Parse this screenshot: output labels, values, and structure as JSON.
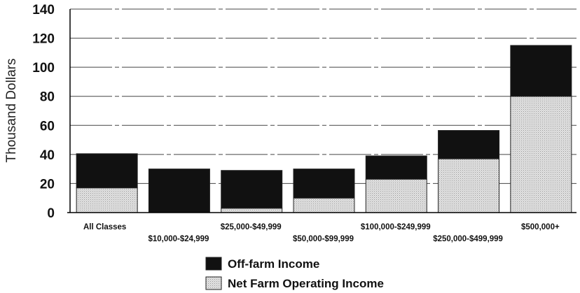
{
  "chart_data": {
    "type": "bar",
    "stacked": true,
    "title": "",
    "xlabel": "",
    "ylabel": "Thousand Dollars",
    "ylim": [
      0,
      140
    ],
    "yticks": [
      "0",
      "20",
      "40",
      "60",
      "80",
      "100",
      "120",
      "140"
    ],
    "grid": true,
    "legend_position": "bottom-center",
    "categories": [
      "All Classes",
      "$10,000-$24,999",
      "$25,000-$49,999",
      "$50,000-$99,999",
      "$100,000-$249,999",
      "$250,000-$499,999",
      "$500,000+"
    ],
    "series": [
      {
        "name": "Net Farm Operating Income",
        "color": "#d4d4d4",
        "values": [
          17,
          0,
          3,
          10,
          23,
          37,
          80
        ]
      },
      {
        "name": "Off-farm Income",
        "color": "#111111",
        "values": [
          23.5,
          30,
          26,
          20,
          16,
          19.5,
          35
        ]
      }
    ]
  }
}
